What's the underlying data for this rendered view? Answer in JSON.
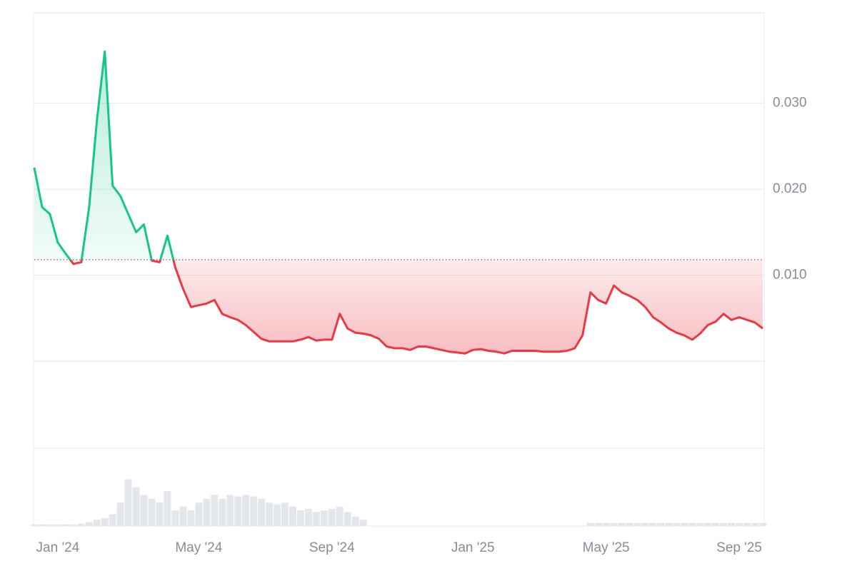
{
  "chart_data": {
    "type": "line",
    "categories": [
      null,
      null,
      null,
      "Jan '24",
      null,
      null,
      null,
      null,
      null,
      null,
      null,
      null,
      null,
      null,
      null,
      null,
      null,
      null,
      null,
      null,
      null,
      "May '24",
      null,
      null,
      null,
      null,
      null,
      null,
      null,
      null,
      null,
      null,
      null,
      null,
      null,
      null,
      null,
      null,
      "Sep '24",
      null,
      null,
      null,
      null,
      null,
      null,
      null,
      null,
      null,
      null,
      null,
      null,
      null,
      null,
      null,
      null,
      null,
      "Jan '25",
      null,
      null,
      null,
      null,
      null,
      null,
      null,
      null,
      null,
      null,
      null,
      null,
      null,
      null,
      null,
      null,
      "May '25",
      null,
      null,
      null,
      null,
      null,
      null,
      null,
      null,
      null,
      null,
      null,
      null,
      null,
      null,
      null,
      null,
      "Sep '25",
      null,
      null,
      null
    ],
    "values": [
      0.0225,
      0.0179,
      0.0171,
      0.0138,
      0.0125,
      0.0113,
      0.0115,
      0.0179,
      0.028,
      0.036,
      0.0204,
      0.0192,
      0.0171,
      0.015,
      0.0159,
      0.0117,
      0.0115,
      0.0146,
      0.0109,
      0.0084,
      0.0063,
      0.0065,
      0.0067,
      0.0071,
      0.0055,
      0.0051,
      0.0048,
      0.0042,
      0.0034,
      0.0026,
      0.0023,
      0.0023,
      0.0023,
      0.0023,
      0.0025,
      0.0028,
      0.0024,
      0.0025,
      0.0025,
      0.0055,
      0.0038,
      0.0033,
      0.0032,
      0.003,
      0.0026,
      0.0017,
      0.0015,
      0.0015,
      0.0013,
      0.0017,
      0.0017,
      0.0015,
      0.0013,
      0.0011,
      0.001,
      0.0009,
      0.0013,
      0.0014,
      0.0012,
      0.0011,
      0.0009,
      0.0012,
      0.0012,
      0.0012,
      0.0012,
      0.0011,
      0.0011,
      0.0011,
      0.0012,
      0.0015,
      0.003,
      0.008,
      0.0071,
      0.0067,
      0.0088,
      0.008,
      0.0076,
      0.0071,
      0.0063,
      0.0051,
      0.0045,
      0.0038,
      0.0033,
      0.003,
      0.0025,
      0.0032,
      0.0042,
      0.0046,
      0.0055,
      0.0048,
      0.0051,
      0.0048,
      0.0045,
      0.0038
    ],
    "baseline": 0.0118,
    "up_color": "#16c784",
    "down_color": "#ea3943",
    "ylim": [
      0,
      0.04
    ],
    "yticks": [
      {
        "value": 0.01,
        "label": "0.010"
      },
      {
        "value": 0.02,
        "label": "0.020"
      },
      {
        "value": 0.03,
        "label": "0.030"
      }
    ],
    "grid": true,
    "volume": [
      2,
      2,
      2,
      2,
      2,
      2,
      3,
      5,
      8,
      10,
      15,
      30,
      60,
      50,
      40,
      35,
      30,
      45,
      20,
      25,
      20,
      30,
      35,
      40,
      35,
      40,
      38,
      40,
      38,
      35,
      30,
      28,
      30,
      25,
      20,
      22,
      18,
      20,
      22,
      25,
      18,
      12,
      8,
      0,
      0,
      0,
      0,
      0,
      0,
      0,
      0,
      0,
      0,
      0,
      0,
      0,
      0,
      0,
      0,
      0,
      0,
      0,
      0,
      0,
      0,
      0,
      0,
      0,
      0,
      0,
      0,
      4,
      4,
      4,
      4,
      4,
      4,
      4,
      4,
      4,
      4,
      4,
      4,
      4,
      4,
      4,
      4,
      4,
      4,
      4,
      4,
      4,
      4,
      4
    ],
    "volume_ylim": [
      0,
      100
    ],
    "volume_color": "#e3e6ea"
  }
}
